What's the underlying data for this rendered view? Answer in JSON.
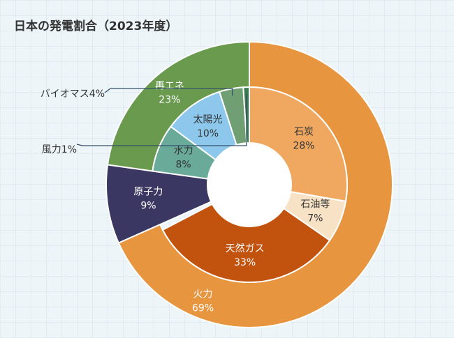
{
  "chart_data": {
    "type": "sunburst",
    "title": "日本の発電割合（2023年度）",
    "groups": [
      {
        "name": "火力",
        "value": 69,
        "value_label": "69%",
        "color": "#e8953f",
        "label_color": "#ffffff",
        "children": [
          {
            "name": "石炭",
            "value": 28,
            "value_label": "28%",
            "color": "#f0a860",
            "label_color": "#333333"
          },
          {
            "name": "石油等",
            "value": 7,
            "value_label": "7%",
            "color": "#f8e2c6",
            "label_color": "#333333"
          },
          {
            "name": "天然ガス",
            "value": 33,
            "value_label": "33%",
            "color": "#c2530f",
            "label_color": "#ffffff"
          }
        ]
      },
      {
        "name": "原子力",
        "value": 9,
        "value_label": "9%",
        "color": "#3a3762",
        "label_color": "#ffffff",
        "children": []
      },
      {
        "name": "再エネ",
        "value": 23,
        "value_label": "23%",
        "color": "#6a9a4e",
        "label_color": "#ffffff",
        "children": [
          {
            "name": "水力",
            "value": 8,
            "value_label": "8%",
            "color": "#6aaa98",
            "label_color": "#333333"
          },
          {
            "name": "太陽光",
            "value": 10,
            "value_label": "10%",
            "color": "#8dc8ec",
            "label_color": "#333333"
          },
          {
            "name": "バイオマス",
            "value": 4,
            "value_label": "4%",
            "color": "#6f9f72",
            "label_color": "#333333"
          },
          {
            "name": "風力",
            "value": 1,
            "value_label": "1%",
            "color": "#3e7a50",
            "label_color": "#333333"
          }
        ]
      }
    ]
  }
}
